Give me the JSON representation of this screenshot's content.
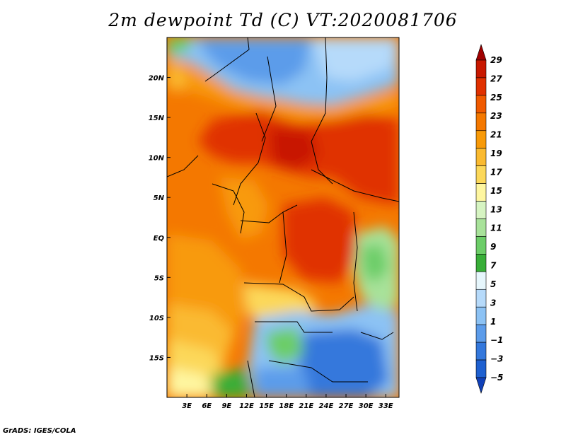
{
  "title": "2m dewpoint Td (C) VT:2020081706",
  "credit": "GrADS: IGES/COLA",
  "map": {
    "lat_ticks": [
      {
        "label": "20N",
        "value": 20
      },
      {
        "label": "15N",
        "value": 15
      },
      {
        "label": "10N",
        "value": 10
      },
      {
        "label": "5N",
        "value": 5
      },
      {
        "label": "EQ",
        "value": 0
      },
      {
        "label": "5S",
        "value": -5
      },
      {
        "label": "10S",
        "value": -10
      },
      {
        "label": "15S",
        "value": -15
      }
    ],
    "lon_ticks": [
      {
        "label": "3E",
        "value": 3
      },
      {
        "label": "6E",
        "value": 6
      },
      {
        "label": "9E",
        "value": 9
      },
      {
        "label": "12E",
        "value": 12
      },
      {
        "label": "15E",
        "value": 15
      },
      {
        "label": "18E",
        "value": 18
      },
      {
        "label": "21E",
        "value": 21
      },
      {
        "label": "24E",
        "value": 24
      },
      {
        "label": "27E",
        "value": 27
      },
      {
        "label": "30E",
        "value": 30
      },
      {
        "label": "33E",
        "value": 33
      }
    ],
    "lon_range": [
      0,
      35
    ],
    "lat_range": [
      -20,
      25
    ]
  },
  "colorbar": {
    "labels": [
      "29",
      "27",
      "25",
      "23",
      "21",
      "19",
      "17",
      "15",
      "13",
      "11",
      "9",
      "7",
      "5",
      "3",
      "1",
      "−1",
      "−3",
      "−5"
    ],
    "colors": [
      "#a00000",
      "#c81800",
      "#e03000",
      "#f05a00",
      "#f47800",
      "#f89a08",
      "#faba30",
      "#fcd85a",
      "#fef6a0",
      "#d6f4c2",
      "#a8e29a",
      "#6ccd68",
      "#38ae38",
      "#e6f6fc",
      "#b6dafa",
      "#8cc2f4",
      "#5c9cea",
      "#3478dc",
      "#1e60d0",
      "#1040b8"
    ]
  }
}
